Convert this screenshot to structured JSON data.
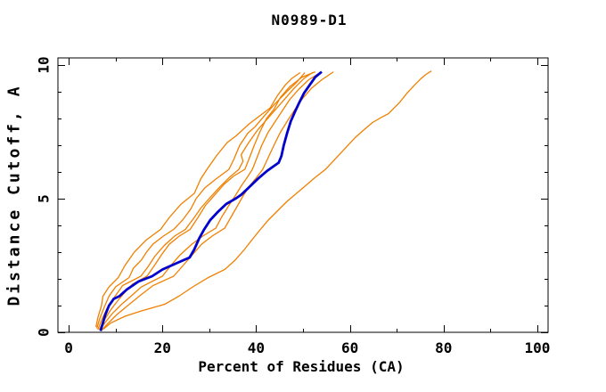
{
  "chart_data": {
    "type": "line",
    "title": "N0989-D1",
    "xlabel": "Percent of Residues (CA)",
    "ylabel": "Distance Cutoff, A",
    "xlim": [
      -2.3,
      102.3
    ],
    "ylim": [
      0,
      10.27
    ],
    "grid": false,
    "legend": "none",
    "x_ticks": {
      "major": [
        0,
        20,
        40,
        60,
        80,
        100
      ],
      "minor": [
        10,
        30,
        50,
        70,
        90
      ],
      "labels": [
        "0",
        "20",
        "40",
        "60",
        "80",
        "100"
      ]
    },
    "y_ticks": {
      "major": [
        0,
        5,
        10
      ],
      "minor": [
        1,
        2,
        3,
        4,
        6,
        7,
        8,
        9
      ],
      "labels": [
        "0",
        "5",
        "10"
      ]
    },
    "colors": {
      "model_line": "#F08000",
      "highlight_line": "#0000CC",
      "axis": "#000000",
      "background": "#FFFFFF"
    },
    "series": [
      {
        "name": "model-1",
        "role": "model",
        "color": "#F08000",
        "width": 1.3,
        "points": [
          [
            5.8,
            0.2
          ],
          [
            6.3,
            0.6
          ],
          [
            7.0,
            1.0
          ],
          [
            7.3,
            1.35
          ],
          [
            8.6,
            1.7
          ],
          [
            10.6,
            2.05
          ],
          [
            12.0,
            2.5
          ],
          [
            14.0,
            3.0
          ],
          [
            16.5,
            3.45
          ],
          [
            19.6,
            3.85
          ],
          [
            21.5,
            4.3
          ],
          [
            24.0,
            4.8
          ],
          [
            26.8,
            5.2
          ],
          [
            28.2,
            5.75
          ],
          [
            29.5,
            6.1
          ],
          [
            31.5,
            6.6
          ],
          [
            33.8,
            7.1
          ],
          [
            35.7,
            7.35
          ],
          [
            38.5,
            7.8
          ],
          [
            41.5,
            8.2
          ],
          [
            43.0,
            8.4
          ],
          [
            44.5,
            8.85
          ],
          [
            46.2,
            9.25
          ],
          [
            47.6,
            9.5
          ],
          [
            49.4,
            9.72
          ]
        ]
      },
      {
        "name": "model-2",
        "role": "model",
        "color": "#F08000",
        "width": 1.3,
        "points": [
          [
            6.0,
            0.15
          ],
          [
            6.6,
            0.5
          ],
          [
            7.6,
            0.95
          ],
          [
            8.6,
            1.35
          ],
          [
            10.0,
            1.7
          ],
          [
            12.9,
            2.05
          ],
          [
            13.8,
            2.4
          ],
          [
            15.5,
            2.7
          ],
          [
            16.6,
            3.0
          ],
          [
            18.0,
            3.3
          ],
          [
            20.2,
            3.6
          ],
          [
            22.4,
            3.85
          ],
          [
            24.3,
            4.2
          ],
          [
            26.0,
            4.6
          ],
          [
            27.2,
            5.0
          ],
          [
            29.0,
            5.4
          ],
          [
            31.5,
            5.75
          ],
          [
            34.2,
            6.1
          ],
          [
            35.3,
            6.5
          ],
          [
            36.5,
            7.0
          ],
          [
            38.2,
            7.45
          ],
          [
            39.8,
            7.7
          ],
          [
            41.5,
            8.05
          ],
          [
            44.0,
            8.55
          ],
          [
            46.8,
            9.05
          ],
          [
            48.6,
            9.35
          ],
          [
            50.4,
            9.72
          ]
        ]
      },
      {
        "name": "model-3",
        "role": "model",
        "color": "#F08000",
        "width": 1.3,
        "points": [
          [
            6.2,
            0.1
          ],
          [
            7.0,
            0.45
          ],
          [
            8.2,
            0.9
          ],
          [
            9.7,
            1.3
          ],
          [
            11.5,
            1.75
          ],
          [
            15.4,
            2.1
          ],
          [
            16.9,
            2.45
          ],
          [
            18.4,
            2.85
          ],
          [
            20.4,
            3.25
          ],
          [
            22.6,
            3.6
          ],
          [
            24.9,
            3.85
          ],
          [
            26.6,
            4.25
          ],
          [
            28.2,
            4.65
          ],
          [
            30.2,
            5.05
          ],
          [
            32.3,
            5.45
          ],
          [
            34.3,
            5.8
          ],
          [
            36.3,
            6.1
          ],
          [
            37.2,
            6.4
          ],
          [
            36.8,
            6.65
          ],
          [
            38.2,
            7.05
          ],
          [
            40.2,
            7.55
          ],
          [
            42.2,
            7.95
          ],
          [
            44.2,
            8.35
          ],
          [
            46.2,
            8.75
          ],
          [
            48.2,
            9.15
          ],
          [
            50.2,
            9.5
          ],
          [
            52.0,
            9.72
          ]
        ]
      },
      {
        "name": "model-4",
        "role": "model",
        "color": "#F08000",
        "width": 1.3,
        "points": [
          [
            6.5,
            0.1
          ],
          [
            7.4,
            0.4
          ],
          [
            8.8,
            0.8
          ],
          [
            10.3,
            1.15
          ],
          [
            12.0,
            1.5
          ],
          [
            13.6,
            1.8
          ],
          [
            16.7,
            2.1
          ],
          [
            18.3,
            2.5
          ],
          [
            19.8,
            2.9
          ],
          [
            21.5,
            3.3
          ],
          [
            23.6,
            3.6
          ],
          [
            25.9,
            3.85
          ],
          [
            27.6,
            4.3
          ],
          [
            29.2,
            4.75
          ],
          [
            31.2,
            5.15
          ],
          [
            33.2,
            5.55
          ],
          [
            35.2,
            5.85
          ],
          [
            37.6,
            6.1
          ],
          [
            38.6,
            6.55
          ],
          [
            39.6,
            7.0
          ],
          [
            40.8,
            7.5
          ],
          [
            42.2,
            8.0
          ],
          [
            43.8,
            8.35
          ],
          [
            45.2,
            8.8
          ],
          [
            47.2,
            9.2
          ],
          [
            49.8,
            9.55
          ],
          [
            52.6,
            9.75
          ]
        ]
      },
      {
        "name": "model-5",
        "role": "model",
        "color": "#F08000",
        "width": 1.3,
        "points": [
          [
            6.7,
            0.1
          ],
          [
            7.7,
            0.35
          ],
          [
            9.3,
            0.7
          ],
          [
            11.3,
            1.05
          ],
          [
            13.3,
            1.35
          ],
          [
            15.5,
            1.7
          ],
          [
            20.0,
            2.1
          ],
          [
            21.8,
            2.5
          ],
          [
            23.8,
            2.9
          ],
          [
            26.3,
            3.3
          ],
          [
            28.6,
            3.6
          ],
          [
            31.4,
            3.9
          ],
          [
            32.6,
            4.3
          ],
          [
            34.0,
            4.7
          ],
          [
            35.5,
            5.1
          ],
          [
            36.9,
            5.5
          ],
          [
            38.1,
            5.8
          ],
          [
            39.2,
            6.1
          ],
          [
            40.1,
            6.5
          ],
          [
            41.2,
            7.0
          ],
          [
            42.6,
            7.5
          ],
          [
            44.1,
            7.9
          ],
          [
            45.6,
            8.3
          ],
          [
            47.1,
            8.7
          ],
          [
            49.1,
            9.1
          ],
          [
            51.2,
            9.45
          ],
          [
            53.5,
            9.7
          ]
        ]
      },
      {
        "name": "model-6",
        "role": "model",
        "color": "#F08000",
        "width": 1.3,
        "points": [
          [
            6.9,
            0.05
          ],
          [
            8.2,
            0.3
          ],
          [
            10.2,
            0.65
          ],
          [
            12.6,
            1.0
          ],
          [
            15.4,
            1.4
          ],
          [
            18.0,
            1.75
          ],
          [
            22.4,
            2.1
          ],
          [
            24.4,
            2.5
          ],
          [
            26.4,
            2.9
          ],
          [
            28.4,
            3.3
          ],
          [
            30.6,
            3.6
          ],
          [
            33.3,
            3.9
          ],
          [
            34.6,
            4.3
          ],
          [
            35.9,
            4.7
          ],
          [
            37.2,
            5.1
          ],
          [
            38.7,
            5.5
          ],
          [
            40.1,
            5.8
          ],
          [
            41.4,
            6.1
          ],
          [
            42.6,
            6.55
          ],
          [
            43.8,
            7.0
          ],
          [
            45.2,
            7.5
          ],
          [
            46.8,
            7.95
          ],
          [
            48.3,
            8.35
          ],
          [
            49.9,
            8.75
          ],
          [
            51.9,
            9.15
          ],
          [
            54.0,
            9.45
          ],
          [
            56.5,
            9.75
          ]
        ]
      },
      {
        "name": "model-7",
        "role": "model",
        "color": "#F08000",
        "width": 1.3,
        "points": [
          [
            7.4,
            0.12
          ],
          [
            9.0,
            0.35
          ],
          [
            12.0,
            0.6
          ],
          [
            15.5,
            0.8
          ],
          [
            20.5,
            1.05
          ],
          [
            23.5,
            1.35
          ],
          [
            26.5,
            1.7
          ],
          [
            29.8,
            2.05
          ],
          [
            33.3,
            2.35
          ],
          [
            35.5,
            2.7
          ],
          [
            37.5,
            3.1
          ],
          [
            39.3,
            3.5
          ],
          [
            40.9,
            3.85
          ],
          [
            42.6,
            4.2
          ],
          [
            44.6,
            4.55
          ],
          [
            46.6,
            4.9
          ],
          [
            48.6,
            5.2
          ],
          [
            50.6,
            5.5
          ],
          [
            52.6,
            5.8
          ],
          [
            54.8,
            6.1
          ],
          [
            56.4,
            6.4
          ],
          [
            58.0,
            6.7
          ],
          [
            59.6,
            7.0
          ],
          [
            61.2,
            7.3
          ],
          [
            62.8,
            7.55
          ],
          [
            64.8,
            7.85
          ],
          [
            66.8,
            8.05
          ],
          [
            68.2,
            8.18
          ],
          [
            70.6,
            8.6
          ],
          [
            72.2,
            8.95
          ],
          [
            73.8,
            9.25
          ],
          [
            75.2,
            9.5
          ],
          [
            76.2,
            9.65
          ],
          [
            77.4,
            9.78
          ]
        ]
      },
      {
        "name": "model-highlighted",
        "role": "highlight",
        "color": "#0000CC",
        "width": 2.8,
        "points": [
          [
            6.8,
            0.05
          ],
          [
            7.2,
            0.3
          ],
          [
            7.8,
            0.65
          ],
          [
            8.6,
            1.0
          ],
          [
            9.6,
            1.25
          ],
          [
            10.8,
            1.35
          ],
          [
            12.4,
            1.6
          ],
          [
            14.9,
            1.9
          ],
          [
            17.8,
            2.1
          ],
          [
            20.0,
            2.35
          ],
          [
            23.2,
            2.6
          ],
          [
            25.8,
            2.8
          ],
          [
            26.8,
            3.1
          ],
          [
            27.8,
            3.5
          ],
          [
            28.9,
            3.85
          ],
          [
            30.2,
            4.2
          ],
          [
            31.8,
            4.5
          ],
          [
            33.6,
            4.8
          ],
          [
            35.6,
            5.0
          ],
          [
            36.8,
            5.15
          ],
          [
            38.6,
            5.45
          ],
          [
            40.4,
            5.75
          ],
          [
            42.4,
            6.05
          ],
          [
            43.6,
            6.2
          ],
          [
            44.8,
            6.35
          ],
          [
            45.4,
            6.6
          ],
          [
            45.9,
            7.0
          ],
          [
            46.6,
            7.45
          ],
          [
            47.4,
            7.9
          ],
          [
            48.4,
            8.3
          ],
          [
            49.2,
            8.6
          ],
          [
            50.2,
            8.95
          ],
          [
            51.4,
            9.25
          ],
          [
            52.6,
            9.55
          ],
          [
            54.0,
            9.75
          ]
        ]
      }
    ]
  }
}
